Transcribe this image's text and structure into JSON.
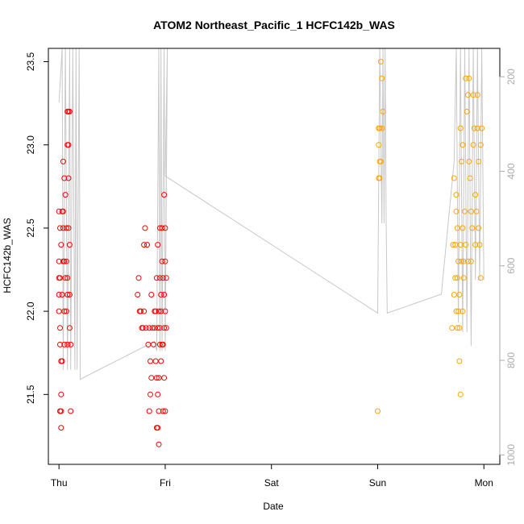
{
  "chart_data": {
    "type": "scatter",
    "title": "ATOM2 Northeast_Pacific_1 HCFC142b_WAS",
    "xlabel": "Date",
    "ylabel": "HCFC142b_WAS",
    "x_ticks": [
      "Thu",
      "Fri",
      "Sat",
      "Sun",
      "Mon"
    ],
    "x_range_days": [
      -0.1,
      4.15
    ],
    "y_ticks": [
      "21.5",
      "22.0",
      "22.5",
      "23.0",
      "23.5"
    ],
    "y_tick_values": [
      21.5,
      22.0,
      22.5,
      23.0,
      23.5
    ],
    "ylim": [
      21.08,
      23.58
    ],
    "right_axis": {
      "ticks": [
        "200",
        "400",
        "600",
        "800",
        "1000"
      ],
      "tick_values": [
        200,
        400,
        600,
        800,
        1000
      ],
      "lim": [
        140,
        1020
      ],
      "inverted": true,
      "color": "#aaaaaa"
    },
    "line_color": "#c8c8c8",
    "altitude_profile": [
      [
        0.0,
        255
      ],
      [
        0.03,
        140
      ],
      [
        0.04,
        820
      ],
      [
        0.06,
        140
      ],
      [
        0.08,
        820
      ],
      [
        0.1,
        140
      ],
      [
        0.11,
        820
      ],
      [
        0.13,
        140
      ],
      [
        0.15,
        820
      ],
      [
        0.16,
        140
      ],
      [
        0.17,
        820
      ],
      [
        0.19,
        140
      ],
      [
        0.2,
        840
      ],
      [
        0.9,
        760
      ],
      [
        0.92,
        780
      ],
      [
        0.94,
        140
      ],
      [
        0.95,
        780
      ],
      [
        0.96,
        140
      ],
      [
        0.97,
        780
      ],
      [
        0.99,
        140
      ],
      [
        1.0,
        780
      ],
      [
        1.02,
        140
      ],
      [
        1.0,
        410
      ],
      [
        3.0,
        700
      ],
      [
        3.02,
        140
      ],
      [
        3.04,
        510
      ],
      [
        3.05,
        140
      ],
      [
        3.06,
        510
      ],
      [
        3.07,
        140
      ],
      [
        3.08,
        505
      ],
      [
        3.09,
        700
      ],
      [
        3.6,
        660
      ],
      [
        3.72,
        380
      ],
      [
        3.74,
        140
      ],
      [
        3.76,
        720
      ],
      [
        3.78,
        140
      ],
      [
        3.8,
        740
      ],
      [
        3.82,
        140
      ],
      [
        3.84,
        740
      ],
      [
        3.86,
        140
      ],
      [
        3.88,
        770
      ],
      [
        3.9,
        140
      ],
      [
        3.92,
        630
      ],
      [
        3.94,
        140
      ],
      [
        3.96,
        630
      ],
      [
        3.98,
        140
      ],
      [
        4.0,
        630
      ]
    ],
    "series": [
      {
        "color": "#ff0000",
        "points": [
          [
            0.0,
            22.6
          ],
          [
            0.01,
            22.5
          ],
          [
            0.0,
            22.3
          ],
          [
            0.0,
            22.2
          ],
          [
            0.01,
            22.2
          ],
          [
            0.0,
            22.1
          ],
          [
            0.0,
            22.0
          ],
          [
            0.01,
            21.9
          ],
          [
            0.01,
            21.8
          ],
          [
            0.02,
            21.7
          ],
          [
            0.02,
            21.5
          ],
          [
            0.02,
            21.4
          ],
          [
            0.01,
            21.4
          ],
          [
            0.02,
            21.3
          ],
          [
            0.02,
            22.4
          ],
          [
            0.03,
            22.6
          ],
          [
            0.04,
            22.6
          ],
          [
            0.05,
            22.8
          ],
          [
            0.04,
            22.5
          ],
          [
            0.03,
            22.1
          ],
          [
            0.04,
            22.3
          ],
          [
            0.05,
            22.3
          ],
          [
            0.05,
            22.0
          ],
          [
            0.06,
            22.2
          ],
          [
            0.07,
            22.3
          ],
          [
            0.06,
            22.7
          ],
          [
            0.07,
            22.5
          ],
          [
            0.08,
            22.2
          ],
          [
            0.08,
            22.1
          ],
          [
            0.07,
            22.0
          ],
          [
            0.08,
            21.8
          ],
          [
            0.05,
            21.8
          ],
          [
            0.09,
            22.8
          ],
          [
            0.09,
            22.5
          ],
          [
            0.08,
            23.0
          ],
          [
            0.09,
            23.0
          ],
          [
            0.08,
            23.2
          ],
          [
            0.09,
            23.2
          ],
          [
            0.1,
            23.2
          ],
          [
            0.1,
            22.4
          ],
          [
            0.1,
            22.1
          ],
          [
            0.1,
            21.9
          ],
          [
            0.11,
            21.8
          ],
          [
            0.11,
            21.4
          ],
          [
            0.03,
            21.7
          ],
          [
            0.04,
            22.9
          ],
          [
            0.75,
            22.2
          ],
          [
            0.76,
            22.0
          ],
          [
            0.74,
            22.1
          ],
          [
            0.77,
            22.0
          ],
          [
            0.78,
            21.9
          ],
          [
            0.79,
            21.9
          ],
          [
            0.8,
            22.4
          ],
          [
            0.81,
            22.5
          ],
          [
            0.8,
            22.0
          ],
          [
            0.82,
            21.9
          ],
          [
            0.83,
            22.4
          ],
          [
            0.84,
            21.8
          ],
          [
            0.85,
            21.9
          ],
          [
            0.86,
            21.7
          ],
          [
            0.87,
            21.6
          ],
          [
            0.86,
            21.5
          ],
          [
            0.85,
            21.4
          ],
          [
            0.87,
            22.1
          ],
          [
            0.88,
            21.9
          ],
          [
            0.9,
            22.0
          ],
          [
            0.91,
            22.0
          ],
          [
            0.92,
            22.2
          ],
          [
            0.93,
            21.9
          ],
          [
            0.9,
            21.9
          ],
          [
            0.89,
            21.8
          ],
          [
            0.91,
            21.7
          ],
          [
            0.92,
            21.6
          ],
          [
            0.93,
            21.5
          ],
          [
            0.95,
            21.9
          ],
          [
            0.95,
            21.8
          ],
          [
            0.94,
            21.6
          ],
          [
            0.94,
            21.4
          ],
          [
            0.92,
            21.3
          ],
          [
            0.93,
            21.3
          ],
          [
            0.94,
            21.2
          ],
          [
            0.95,
            22.5
          ],
          [
            0.96,
            22.0
          ],
          [
            0.97,
            21.8
          ],
          [
            0.97,
            22.3
          ],
          [
            0.98,
            22.2
          ],
          [
            0.97,
            22.5
          ],
          [
            0.98,
            21.8
          ],
          [
            0.99,
            22.1
          ],
          [
            0.99,
            21.9
          ],
          [
            1.0,
            22.3
          ],
          [
            0.99,
            22.7
          ],
          [
            1.0,
            22.5
          ],
          [
            1.01,
            22.2
          ],
          [
            1.0,
            22.0
          ],
          [
            1.01,
            21.9
          ],
          [
            0.99,
            21.6
          ],
          [
            1.0,
            21.4
          ],
          [
            0.98,
            21.4
          ],
          [
            0.96,
            22.1
          ],
          [
            0.95,
            22.2
          ],
          [
            0.96,
            21.7
          ],
          [
            0.93,
            22.4
          ],
          [
            0.94,
            22.0
          ]
        ]
      },
      {
        "color": "#ffa500",
        "points": [
          [
            3.0,
            21.4
          ],
          [
            3.01,
            22.8
          ],
          [
            3.02,
            22.9
          ],
          [
            3.01,
            23.0
          ],
          [
            3.02,
            23.1
          ],
          [
            3.03,
            23.5
          ],
          [
            3.04,
            23.4
          ],
          [
            3.05,
            23.2
          ],
          [
            3.04,
            23.1
          ],
          [
            3.03,
            22.9
          ],
          [
            3.02,
            22.8
          ],
          [
            3.01,
            23.1
          ],
          [
            3.7,
            21.9
          ],
          [
            3.71,
            22.4
          ],
          [
            3.72,
            22.1
          ],
          [
            3.73,
            22.2
          ],
          [
            3.72,
            22.8
          ],
          [
            3.74,
            22.7
          ],
          [
            3.74,
            22.6
          ],
          [
            3.73,
            22.4
          ],
          [
            3.75,
            22.5
          ],
          [
            3.76,
            22.3
          ],
          [
            3.75,
            22.2
          ],
          [
            3.76,
            22.0
          ],
          [
            3.77,
            22.1
          ],
          [
            3.78,
            22.4
          ],
          [
            3.79,
            22.3
          ],
          [
            3.78,
            23.1
          ],
          [
            3.79,
            22.9
          ],
          [
            3.8,
            23.0
          ],
          [
            3.8,
            22.5
          ],
          [
            3.81,
            22.3
          ],
          [
            3.81,
            22.2
          ],
          [
            3.8,
            22.0
          ],
          [
            3.82,
            22.6
          ],
          [
            3.83,
            22.4
          ],
          [
            3.84,
            23.2
          ],
          [
            3.83,
            23.4
          ],
          [
            3.85,
            23.3
          ],
          [
            3.86,
            23.4
          ],
          [
            3.86,
            22.9
          ],
          [
            3.87,
            22.8
          ],
          [
            3.88,
            22.6
          ],
          [
            3.88,
            22.3
          ],
          [
            3.89,
            22.5
          ],
          [
            3.9,
            23.3
          ],
          [
            3.9,
            23.0
          ],
          [
            3.91,
            23.1
          ],
          [
            3.92,
            22.7
          ],
          [
            3.92,
            22.4
          ],
          [
            3.93,
            22.6
          ],
          [
            3.94,
            23.3
          ],
          [
            3.94,
            23.1
          ],
          [
            3.95,
            22.9
          ],
          [
            3.95,
            22.5
          ],
          [
            3.96,
            22.4
          ],
          [
            3.97,
            22.2
          ],
          [
            3.97,
            23.0
          ],
          [
            3.98,
            23.1
          ],
          [
            3.77,
            21.9
          ],
          [
            3.77,
            21.7
          ],
          [
            3.78,
            21.5
          ],
          [
            3.74,
            22.0
          ],
          [
            3.75,
            21.9
          ],
          [
            3.85,
            22.3
          ]
        ]
      }
    ]
  }
}
